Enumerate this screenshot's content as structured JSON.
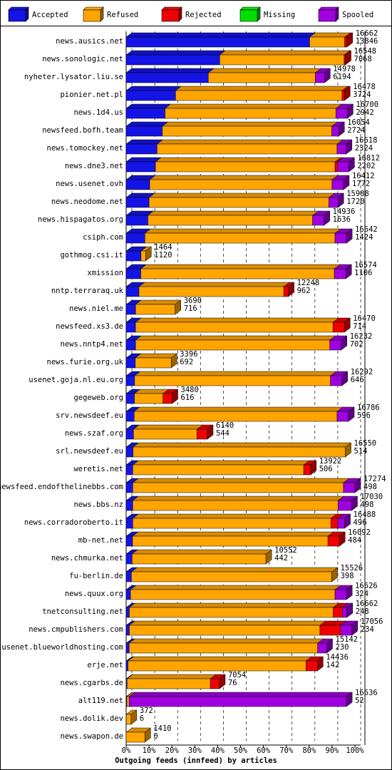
{
  "chart_data": {
    "type": "bar",
    "x_label": "Outgoing feeds (innfeed) by articles",
    "categories": [
      "news.ausics.net",
      "news.sonologic.net",
      "nyheter.lysator.liu.se",
      "pionier.net.pl",
      "news.1d4.us",
      "newsfeed.bofh.team",
      "news.tomockey.net",
      "news.dne3.net",
      "news.usenet.ovh",
      "news.neodome.net",
      "news.hispagatos.org",
      "csiph.com",
      "gothmog.csi.it",
      "xmission",
      "nntp.terraraq.uk",
      "news.niel.me",
      "newsfeed.xs3.de",
      "news.nntp4.net",
      "news.furie.org.uk",
      "usenet.goja.nl.eu.org",
      "gegeweb.org",
      "srv.newsdeef.eu",
      "news.szaf.org",
      "srl.newsdeef.eu",
      "weretis.net",
      "newsfeed.endofthelinebbs.com",
      "news.bbs.nz",
      "news.corradoroberto.it",
      "mb-net.net",
      "news.chmurka.net",
      "fu-berlin.de",
      "news.quux.org",
      "tnetconsulting.net",
      "news.cmpublishers.com",
      "usenet.blueworldhosting.com",
      "erje.net",
      "news.cgarbs.de",
      "alt119.net",
      "news.dolik.dev",
      "news.swapon.de"
    ],
    "offered": [
      16662,
      16548,
      14978,
      16478,
      16700,
      16054,
      16618,
      16812,
      16412,
      15988,
      14936,
      16642,
      1464,
      16574,
      12248,
      3690,
      16470,
      16232,
      3396,
      16292,
      3480,
      16786,
      6140,
      16550,
      13922,
      17274,
      17030,
      16488,
      16092,
      10552,
      15526,
      16626,
      16662,
      17056,
      15142,
      14436,
      7054,
      16636,
      372,
      1410
    ],
    "accepted": [
      13846,
      7068,
      6194,
      3724,
      2942,
      2724,
      2324,
      2202,
      1772,
      1720,
      1636,
      1424,
      1120,
      1106,
      962,
      716,
      714,
      702,
      692,
      646,
      616,
      596,
      544,
      514,
      506,
      498,
      498,
      496,
      484,
      442,
      398,
      324,
      248,
      234,
      230,
      142,
      76,
      52,
      6,
      0
    ],
    "series": [
      {
        "name": "Accepted",
        "color": "#1414e6",
        "values": [
          80.2,
          40.9,
          35.9,
          21.6,
          17.0,
          15.8,
          13.5,
          12.8,
          10.3,
          10.0,
          9.5,
          8.2,
          6.5,
          6.4,
          5.6,
          4.1,
          4.1,
          4.1,
          4.0,
          3.7,
          3.6,
          3.5,
          3.2,
          3.0,
          2.9,
          2.9,
          2.9,
          2.9,
          2.8,
          2.6,
          2.3,
          1.9,
          1.4,
          1.4,
          1.3,
          0.8,
          0.4,
          0.3,
          0.03,
          0
        ]
      },
      {
        "name": "Refused",
        "color": "#ffa500",
        "values": [
          15.3,
          54.4,
          46.8,
          72.8,
          74.7,
          74.1,
          78.7,
          78.5,
          79.7,
          78.6,
          72.0,
          83.1,
          2.0,
          84.6,
          63.3,
          17.3,
          86.3,
          84.9,
          15.7,
          85.6,
          12.5,
          88.7,
          27.8,
          92.8,
          74.7,
          92.1,
          89.7,
          86.6,
          85.4,
          58.5,
          87.6,
          89.4,
          89.1,
          83.3,
          82.4,
          77.8,
          36.4,
          1.0,
          2.1,
          8.2
        ]
      },
      {
        "name": "Rejected",
        "color": "#f00000",
        "values": [
          1.0,
          0.5,
          0,
          1.0,
          0,
          0,
          0,
          1.0,
          0,
          0,
          0,
          0,
          0,
          0,
          2.0,
          0,
          5.0,
          0,
          0,
          0,
          4.0,
          0,
          4.5,
          0,
          3.0,
          0,
          0,
          3.0,
          5.0,
          0,
          0,
          0,
          4.0,
          9.0,
          0,
          5.0,
          4.0,
          0,
          0,
          0
        ]
      },
      {
        "name": "Missing",
        "color": "#00e000",
        "values": [
          0,
          0,
          0,
          0,
          0,
          0,
          0,
          0,
          0,
          0,
          0,
          0,
          0,
          0,
          0,
          0,
          0,
          0,
          0,
          0,
          0,
          0,
          0,
          0,
          0,
          0,
          0,
          0,
          0,
          0,
          0,
          0,
          0,
          0,
          0,
          0,
          0,
          0,
          0,
          0
        ]
      },
      {
        "name": "Spooled",
        "color": "#a000e0",
        "values": [
          0,
          0,
          4.0,
          0,
          5.0,
          3.0,
          4.0,
          5.0,
          5.0,
          4.0,
          5.0,
          5.0,
          0,
          5.0,
          0,
          0,
          0,
          5.0,
          0,
          5.0,
          0,
          5.0,
          0,
          0,
          0,
          5.0,
          6.0,
          3.0,
          0,
          0,
          0,
          5.0,
          2.0,
          5.0,
          4.0,
          0,
          0,
          95.0,
          0,
          0
        ]
      }
    ],
    "xlim": [
      0,
      100
    ],
    "xticks": [
      {
        "value": 0,
        "label": "0%"
      },
      {
        "value": 10,
        "label": "10%"
      },
      {
        "value": 20,
        "label": "20%"
      },
      {
        "value": 30,
        "label": "30%"
      },
      {
        "value": 40,
        "label": "40%"
      },
      {
        "value": 50,
        "label": "50%"
      },
      {
        "value": 60,
        "label": "60%"
      },
      {
        "value": 70,
        "label": "70%"
      },
      {
        "value": 80,
        "label": "80%"
      },
      {
        "value": 90,
        "label": "90%"
      },
      {
        "value": 100,
        "label": "100%"
      }
    ],
    "grid": true
  }
}
